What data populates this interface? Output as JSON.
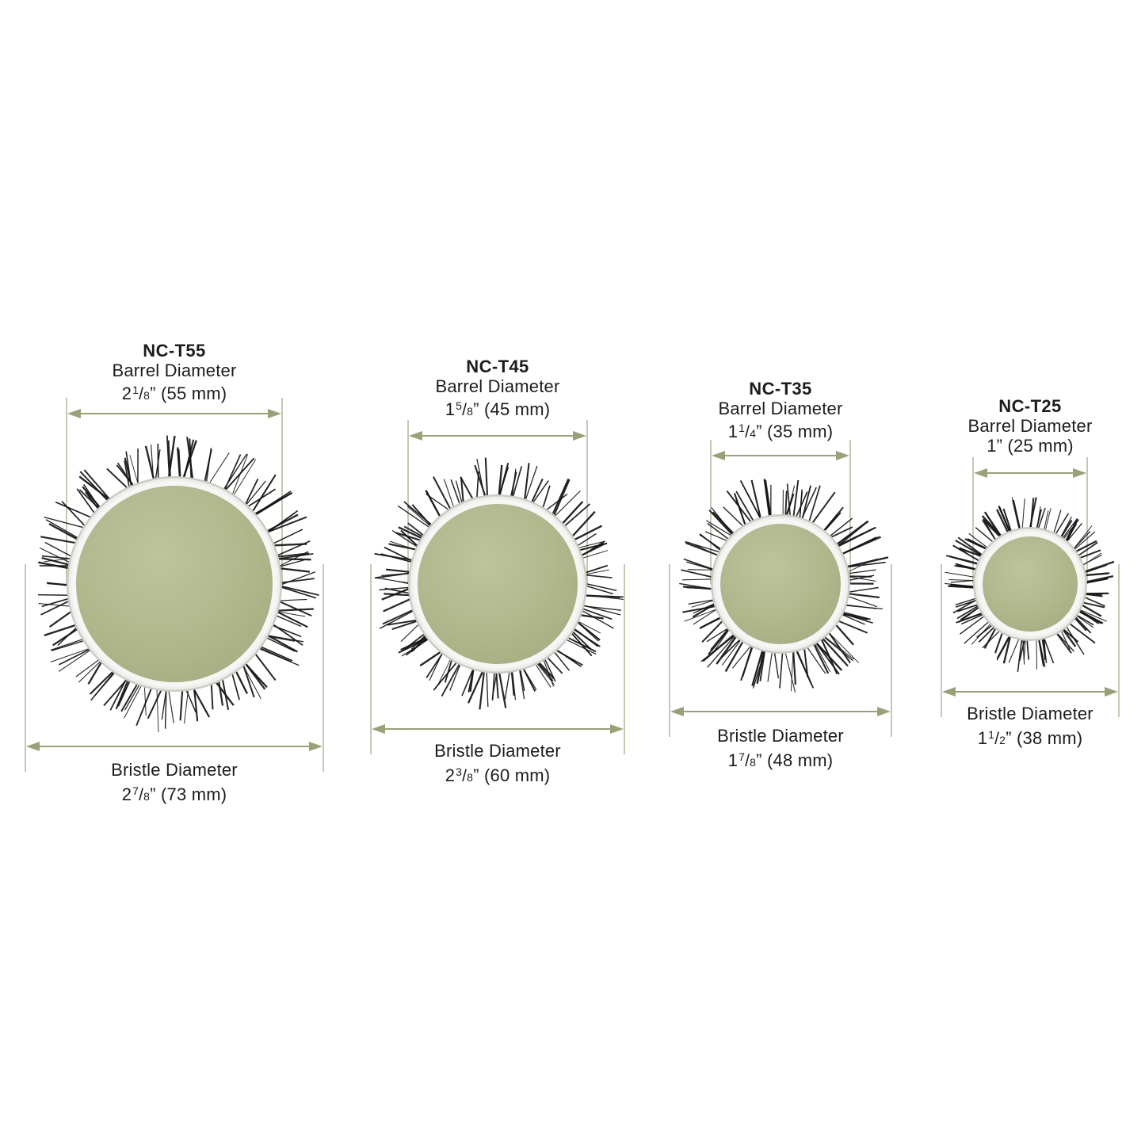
{
  "colors": {
    "dimension_line": "#9aa077",
    "extension_line": "#c6c8b5",
    "text": "#1c1c1a",
    "barrel_face": "#b1b88e",
    "barrel_face_light": "#bdc49d",
    "barrel_face_dark": "#a4ab80",
    "ring_outer": "#c9ccc5",
    "ring_body": "#edefeb",
    "ring_highlight": "#f6f7f5",
    "bristle": "#151515",
    "background": "#ffffff"
  },
  "panels": [
    {
      "model": "NC-T55",
      "barrel_label": "Barrel Diameter",
      "barrel_size": {
        "whole": "2",
        "num": "1",
        "sep": "/",
        "den": "8",
        "rest": "” (55 mm)"
      },
      "bristle_label": "Bristle Diameter",
      "bristle_size": {
        "whole": "2",
        "num": "7",
        "sep": "/",
        "den": "8",
        "rest": "” (73 mm)"
      }
    },
    {
      "model": "NC-T45",
      "barrel_label": "Barrel Diameter",
      "barrel_size": {
        "whole": "1",
        "num": "5",
        "sep": "/",
        "den": "8",
        "rest": "” (45 mm)"
      },
      "bristle_label": "Bristle Diameter",
      "bristle_size": {
        "whole": "2",
        "num": "3",
        "sep": "/",
        "den": "8",
        "rest": "” (60 mm)"
      }
    },
    {
      "model": "NC-T35",
      "barrel_label": "Barrel Diameter",
      "barrel_size": {
        "whole": "1",
        "num": "1",
        "sep": "/",
        "den": "4",
        "rest": "” (35 mm)"
      },
      "bristle_label": "Bristle Diameter",
      "bristle_size": {
        "whole": "1",
        "num": "7",
        "sep": "/",
        "den": "8",
        "rest": "” (48 mm)"
      }
    },
    {
      "model": "NC-T25",
      "barrel_label": "Barrel Diameter",
      "barrel_size": {
        "whole": "1",
        "num": "",
        "sep": "",
        "den": "",
        "rest": "” (25 mm)"
      },
      "bristle_label": "Bristle Diameter",
      "bristle_size": {
        "whole": "1",
        "num": "1",
        "sep": "/",
        "den": "2",
        "rest": "” (38 mm)"
      }
    }
  ]
}
